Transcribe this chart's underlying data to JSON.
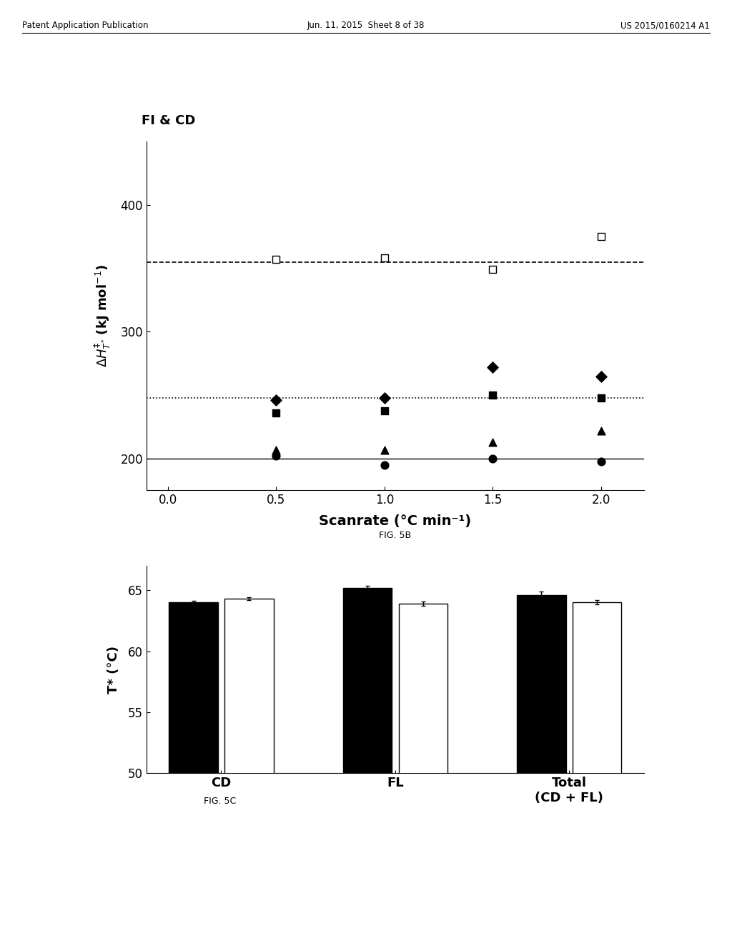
{
  "fig5b": {
    "title": "FI & CD",
    "xlabel": "Scanrate (°C min⁻¹)",
    "ylabel": "ΔH‡_T* (kJ mol⁻¹)",
    "xlim": [
      -0.1,
      2.2
    ],
    "ylim": [
      175,
      450
    ],
    "yticks": [
      200,
      300,
      400
    ],
    "xticks": [
      0.0,
      0.5,
      1.0,
      1.5,
      2.0
    ],
    "hlines": [
      {
        "y": 200,
        "style": "solid",
        "color": "black",
        "lw": 1.0
      },
      {
        "y": 248,
        "style": "dotted",
        "color": "black",
        "lw": 1.2
      },
      {
        "y": 355,
        "style": "dashed",
        "color": "black",
        "lw": 1.2
      }
    ],
    "series": [
      {
        "name": "open_square",
        "x": [
          0.5,
          1.0,
          1.5,
          2.0
        ],
        "y": [
          357,
          358,
          349,
          375
        ],
        "marker": "s",
        "facecolor": "white",
        "edgecolor": "black",
        "size": 60
      },
      {
        "name": "filled_diamond",
        "x": [
          0.5,
          1.0,
          1.5,
          2.0
        ],
        "y": [
          246,
          248,
          272,
          265
        ],
        "marker": "D",
        "facecolor": "black",
        "edgecolor": "black",
        "size": 60
      },
      {
        "name": "filled_square",
        "x": [
          0.5,
          1.0,
          1.5,
          2.0
        ],
        "y": [
          236,
          238,
          250,
          248
        ],
        "marker": "s",
        "facecolor": "black",
        "edgecolor": "black",
        "size": 60
      },
      {
        "name": "filled_triangle",
        "x": [
          0.5,
          1.0,
          1.5,
          2.0
        ],
        "y": [
          207,
          207,
          213,
          222
        ],
        "marker": "^",
        "facecolor": "black",
        "edgecolor": "black",
        "size": 60
      },
      {
        "name": "filled_circle",
        "x": [
          0.5,
          1.0,
          1.5,
          2.0
        ],
        "y": [
          202,
          195,
          200,
          198
        ],
        "marker": "o",
        "facecolor": "black",
        "edgecolor": "black",
        "size": 60
      }
    ],
    "fig_label": "FIG. 5B"
  },
  "fig5c": {
    "xlabel_groups": [
      "CD",
      "FL",
      "Total\n(CD + FL)"
    ],
    "ylabel": "T* (°C)",
    "ylim": [
      50,
      67
    ],
    "yticks": [
      50,
      55,
      60,
      65
    ],
    "bar_data": {
      "black": [
        64.0,
        65.2,
        64.6
      ],
      "white": [
        64.3,
        63.9,
        64.0
      ]
    },
    "errors_black": [
      0.15,
      0.18,
      0.3
    ],
    "errors_white": [
      0.12,
      0.18,
      0.18
    ],
    "fig_label": "FIG. 5C"
  },
  "header": {
    "left": "Patent Application Publication",
    "center": "Jun. 11, 2015  Sheet 8 of 38",
    "right": "US 2015/0160214 A1"
  },
  "bg_color": "#ffffff"
}
